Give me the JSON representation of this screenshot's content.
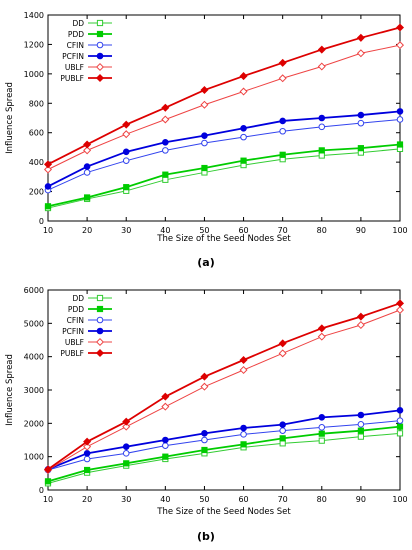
{
  "chart_data": [
    {
      "type": "line",
      "panel_label": "(a)",
      "xlabel": "The Size of the Seed Nodes Set",
      "ylabel": "Influence Spread",
      "x": [
        10,
        20,
        30,
        40,
        50,
        60,
        70,
        80,
        90,
        100
      ],
      "xlim": [
        10,
        100
      ],
      "ylim": [
        0,
        1400
      ],
      "yticks": [
        0,
        200,
        400,
        600,
        800,
        1000,
        1200,
        1400
      ],
      "grid": false,
      "legend_position": "top-left",
      "series": [
        {
          "name": "DD",
          "color": "#33cc33",
          "marker": "open-square",
          "values": [
            88,
            150,
            205,
            280,
            330,
            380,
            420,
            445,
            465,
            490
          ]
        },
        {
          "name": "PDD",
          "color": "#00cc00",
          "marker": "filled-square",
          "values": [
            100,
            160,
            230,
            315,
            360,
            410,
            450,
            480,
            495,
            520
          ]
        },
        {
          "name": "CFIN",
          "color": "#3344ee",
          "marker": "open-circle",
          "values": [
            210,
            330,
            410,
            480,
            530,
            570,
            610,
            640,
            665,
            690
          ]
        },
        {
          "name": "PCFIN",
          "color": "#0000dd",
          "marker": "filled-circle",
          "values": [
            235,
            370,
            470,
            535,
            580,
            630,
            680,
            700,
            720,
            745
          ]
        },
        {
          "name": "UBLF",
          "color": "#ee4444",
          "marker": "open-diamond",
          "values": [
            350,
            480,
            590,
            690,
            790,
            880,
            970,
            1050,
            1140,
            1195
          ]
        },
        {
          "name": "PUBLF",
          "color": "#dd0000",
          "marker": "filled-diamond",
          "values": [
            385,
            520,
            655,
            770,
            890,
            985,
            1075,
            1165,
            1245,
            1315
          ]
        }
      ]
    },
    {
      "type": "line",
      "panel_label": "(b)",
      "xlabel": "The Size of the Seed Nodes Set",
      "ylabel": "Influence Spread",
      "x": [
        10,
        20,
        30,
        40,
        50,
        60,
        70,
        80,
        90,
        100
      ],
      "xlim": [
        10,
        100
      ],
      "ylim": [
        0,
        6000
      ],
      "yticks": [
        0,
        1000,
        2000,
        3000,
        4000,
        5000,
        6000
      ],
      "grid": false,
      "legend_position": "top-left",
      "series": [
        {
          "name": "DD",
          "color": "#33cc33",
          "marker": "open-square",
          "values": [
            200,
            520,
            730,
            930,
            1100,
            1280,
            1400,
            1480,
            1600,
            1700
          ]
        },
        {
          "name": "PDD",
          "color": "#00cc00",
          "marker": "filled-square",
          "values": [
            260,
            600,
            800,
            1000,
            1200,
            1370,
            1550,
            1690,
            1780,
            1900
          ]
        },
        {
          "name": "CFIN",
          "color": "#3344ee",
          "marker": "open-circle",
          "values": [
            600,
            930,
            1100,
            1330,
            1500,
            1670,
            1780,
            1880,
            1970,
            2080
          ]
        },
        {
          "name": "PCFIN",
          "color": "#0000dd",
          "marker": "filled-circle",
          "values": [
            620,
            1100,
            1300,
            1500,
            1700,
            1860,
            1960,
            2180,
            2250,
            2390
          ]
        },
        {
          "name": "UBLF",
          "color": "#ee4444",
          "marker": "open-diamond",
          "values": [
            600,
            1300,
            1900,
            2500,
            3100,
            3600,
            4100,
            4600,
            4950,
            5400
          ]
        },
        {
          "name": "PUBLF",
          "color": "#dd0000",
          "marker": "filled-diamond",
          "values": [
            620,
            1450,
            2050,
            2800,
            3400,
            3900,
            4400,
            4850,
            5200,
            5600
          ]
        }
      ]
    }
  ]
}
